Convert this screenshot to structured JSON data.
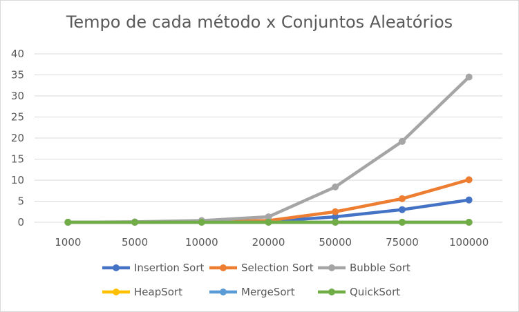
{
  "chart_data": {
    "type": "line",
    "title": "Tempo de cada método x Conjuntos Aleatórios",
    "xlabel": "",
    "ylabel": "",
    "categories": [
      "1000",
      "5000",
      "10000",
      "20000",
      "50000",
      "75000",
      "100000"
    ],
    "ylim": [
      0,
      40
    ],
    "yticks": [
      0,
      5,
      10,
      15,
      20,
      25,
      30,
      35,
      40
    ],
    "grid": true,
    "legend_position": "bottom",
    "series": [
      {
        "name": "Insertion Sort",
        "color": "#4472c4",
        "values": [
          0,
          0,
          0.1,
          0.2,
          1.3,
          3.0,
          5.3
        ]
      },
      {
        "name": "Selection Sort",
        "color": "#ed7d31",
        "values": [
          0,
          0,
          0.1,
          0.4,
          2.5,
          5.6,
          10.1
        ]
      },
      {
        "name": "Bubble Sort",
        "color": "#a5a5a5",
        "values": [
          0,
          0.1,
          0.4,
          1.3,
          8.4,
          19.2,
          34.5
        ]
      },
      {
        "name": "HeapSort",
        "color": "#ffc000",
        "values": [
          0,
          0,
          0,
          0,
          0,
          0,
          0
        ]
      },
      {
        "name": "MergeSort",
        "color": "#5b9bd5",
        "values": [
          0,
          0,
          0,
          0,
          0,
          0,
          0
        ]
      },
      {
        "name": "QuickSort",
        "color": "#70ad47",
        "values": [
          0,
          0,
          0,
          0,
          0,
          0,
          0
        ]
      }
    ]
  }
}
